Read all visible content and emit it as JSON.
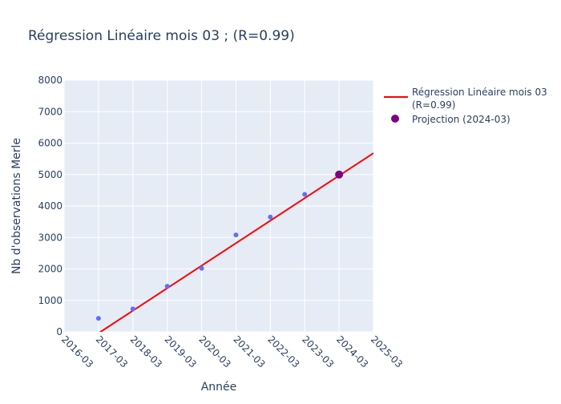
{
  "chart_data": {
    "type": "scatter",
    "title": "Régression Linéaire mois 03 ; (R=0.99)",
    "xlabel": "Année",
    "ylabel": "Nb d'observations Merle",
    "x_ticks": [
      "2016-03",
      "2017-03",
      "2018-03",
      "2019-03",
      "2020-03",
      "2021-03",
      "2022-03",
      "2023-03",
      "2024-03",
      "2025-03"
    ],
    "xlim": [
      "2016-03",
      "2025-03"
    ],
    "ylim": [
      0,
      8000
    ],
    "y_ticks": [
      0,
      1000,
      2000,
      3000,
      4000,
      5000,
      6000,
      7000,
      8000
    ],
    "grid": true,
    "legend_position": "top-right",
    "series": [
      {
        "type": "scatter",
        "color": "#636efa",
        "points": [
          {
            "x": "2017-03",
            "y": 430
          },
          {
            "x": "2018-03",
            "y": 730
          },
          {
            "x": "2019-03",
            "y": 1450
          },
          {
            "x": "2020-03",
            "y": 2020
          },
          {
            "x": "2021-03",
            "y": 3080
          },
          {
            "x": "2022-03",
            "y": 3650
          },
          {
            "x": "2023-03",
            "y": 4370
          }
        ]
      },
      {
        "type": "line",
        "name": "Régression Linéaire mois 03 (R=0.99)",
        "legend_lines": [
          "Régression Linéaire mois 03",
          "(R=0.99)"
        ],
        "color": "#ff0000",
        "points": [
          {
            "x": "2016-03",
            "y": -758
          },
          {
            "x": "2025-03",
            "y": 5680
          }
        ]
      },
      {
        "type": "scatter",
        "name": "Projection (2024-03)",
        "color": "#800080",
        "points": [
          {
            "x": "2024-03",
            "y": 5000
          }
        ]
      }
    ]
  }
}
